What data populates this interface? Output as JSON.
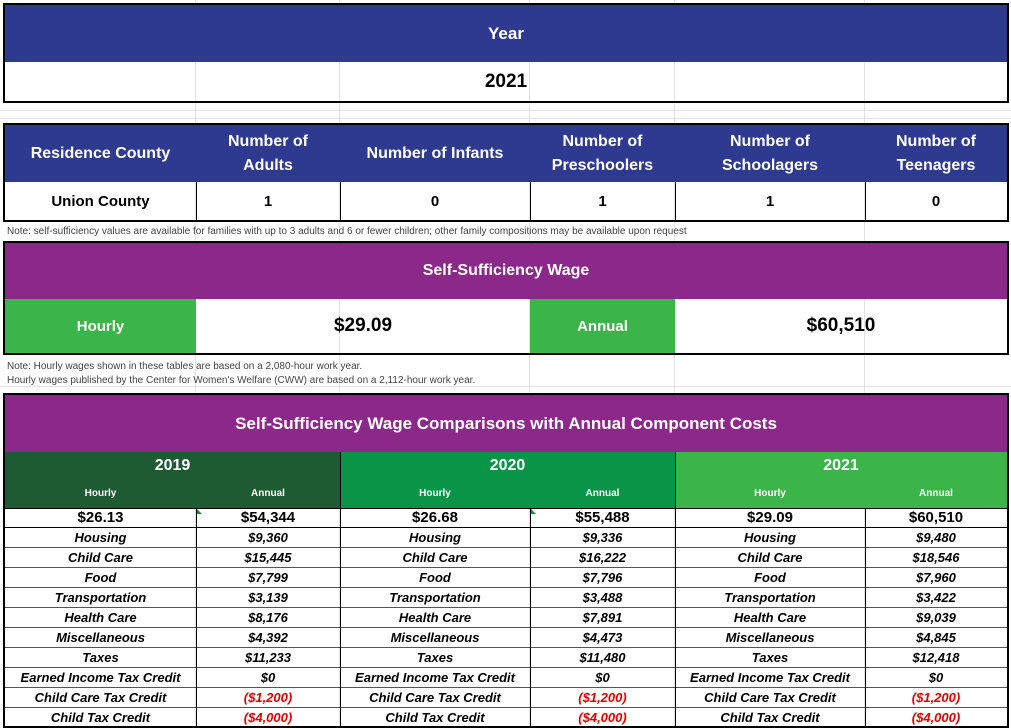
{
  "year_section": {
    "label": "Year",
    "value": "2021"
  },
  "family": {
    "headers": [
      "Residence County",
      "Number of Adults",
      "Number of Infants",
      "Number of Preschoolers",
      "Number of Schoolagers",
      "Number of Teenagers"
    ],
    "values": [
      "Union County",
      "1",
      "0",
      "1",
      "1",
      "0"
    ]
  },
  "note1": "Note: self-sufficiency values are available for families with up to 3 adults and 6 or fewer children; other family compositions may be available upon request",
  "wage": {
    "title": "Self-Sufficiency Wage",
    "hourly_label": "Hourly",
    "hourly_value": "$29.09",
    "annual_label": "Annual",
    "annual_value": "$60,510"
  },
  "note2_line1": "Note: Hourly wages shown in these tables are based on a 2,080-hour work year.",
  "note2_line2": "Hourly wages published by the Center for Women's Welfare (CWW) are based on a 2,112-hour work year.",
  "comparison": {
    "title": "Self-Sufficiency Wage Comparisons with Annual Component Costs",
    "hourly_label": "Hourly",
    "annual_label": "Annual",
    "years": [
      {
        "year": "2019",
        "hourly": "$26.13",
        "annual": "$54,344",
        "components": [
          {
            "label": "Housing",
            "value": "$9,360"
          },
          {
            "label": "Child Care",
            "value": "$15,445"
          },
          {
            "label": "Food",
            "value": "$7,799"
          },
          {
            "label": "Transportation",
            "value": "$3,139"
          },
          {
            "label": "Health Care",
            "value": "$8,176"
          },
          {
            "label": "Miscellaneous",
            "value": "$4,392"
          },
          {
            "label": "Taxes",
            "value": "$11,233"
          },
          {
            "label": "Earned Income Tax Credit",
            "value": "$0"
          },
          {
            "label": "Child Care Tax Credit",
            "value": "($1,200)"
          },
          {
            "label": "Child Tax Credit",
            "value": "($4,000)"
          }
        ]
      },
      {
        "year": "2020",
        "hourly": "$26.68",
        "annual": "$55,488",
        "components": [
          {
            "label": "Housing",
            "value": "$9,336"
          },
          {
            "label": "Child Care",
            "value": "$16,222"
          },
          {
            "label": "Food",
            "value": "$7,796"
          },
          {
            "label": "Transportation",
            "value": "$3,488"
          },
          {
            "label": "Health Care",
            "value": "$7,891"
          },
          {
            "label": "Miscellaneous",
            "value": "$4,473"
          },
          {
            "label": "Taxes",
            "value": "$11,480"
          },
          {
            "label": "Earned Income Tax Credit",
            "value": "$0"
          },
          {
            "label": "Child Care Tax Credit",
            "value": "($1,200)"
          },
          {
            "label": "Child Tax Credit",
            "value": "($4,000)"
          }
        ]
      },
      {
        "year": "2021",
        "hourly": "$29.09",
        "annual": "$60,510",
        "components": [
          {
            "label": "Housing",
            "value": "$9,480"
          },
          {
            "label": "Child Care",
            "value": "$18,546"
          },
          {
            "label": "Food",
            "value": "$7,960"
          },
          {
            "label": "Transportation",
            "value": "$3,422"
          },
          {
            "label": "Health Care",
            "value": "$9,039"
          },
          {
            "label": "Miscellaneous",
            "value": "$4,845"
          },
          {
            "label": "Taxes",
            "value": "$12,418"
          },
          {
            "label": "Earned Income Tax Credit",
            "value": "$0"
          },
          {
            "label": "Child Care Tax Credit",
            "value": "($1,200)"
          },
          {
            "label": "Child Tax Credit",
            "value": "($4,000)"
          }
        ]
      }
    ]
  }
}
